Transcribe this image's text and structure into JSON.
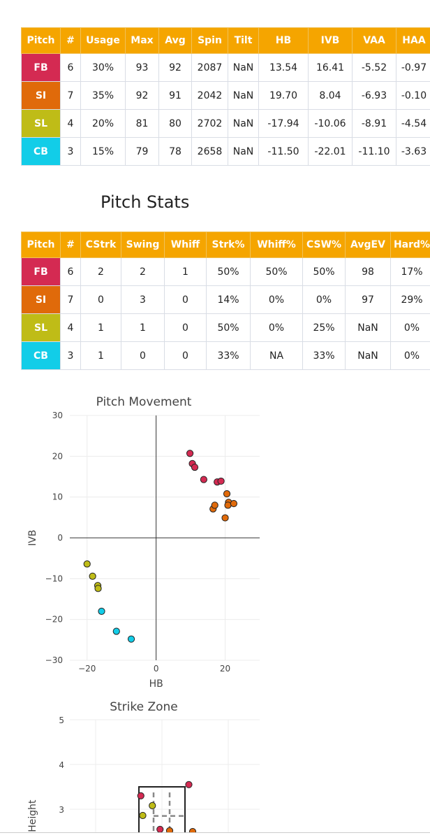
{
  "table1": {
    "headers": [
      "Pitch",
      "#",
      "Usage",
      "Max",
      "Avg",
      "Spin",
      "Tilt",
      "HB",
      "IVB",
      "VAA",
      "HAA"
    ],
    "rows": [
      [
        "FB",
        "6",
        "30%",
        "93",
        "92",
        "2087",
        "NaN",
        "13.54",
        "16.41",
        "-5.52",
        "-0.97"
      ],
      [
        "SI",
        "7",
        "35%",
        "92",
        "91",
        "2042",
        "NaN",
        "19.70",
        "8.04",
        "-6.93",
        "-0.10"
      ],
      [
        "SL",
        "4",
        "20%",
        "81",
        "80",
        "2702",
        "NaN",
        "-17.94",
        "-10.06",
        "-8.91",
        "-4.54"
      ],
      [
        "CB",
        "3",
        "15%",
        "79",
        "78",
        "2658",
        "NaN",
        "-11.50",
        "-22.01",
        "-11.10",
        "-3.63"
      ]
    ]
  },
  "stats_title": "Pitch Stats",
  "table2": {
    "headers": [
      "Pitch",
      "#",
      "CStrk",
      "Swing",
      "Whiff",
      "Strk%",
      "Whiff%",
      "CSW%",
      "AvgEV",
      "Hard%"
    ],
    "rows": [
      [
        "FB",
        "6",
        "2",
        "2",
        "1",
        "50%",
        "50%",
        "50%",
        "98",
        "17%"
      ],
      [
        "SI",
        "7",
        "0",
        "3",
        "0",
        "14%",
        "0%",
        "0%",
        "97",
        "29%"
      ],
      [
        "SL",
        "4",
        "1",
        "1",
        "0",
        "50%",
        "0%",
        "25%",
        "NaN",
        "0%"
      ],
      [
        "CB",
        "3",
        "1",
        "0",
        "0",
        "33%",
        "NA",
        "33%",
        "NaN",
        "0%"
      ]
    ]
  },
  "pitch_colors": {
    "FB": "#d42a52",
    "SI": "#e06a0a",
    "SL": "#bfbc17",
    "CB": "#12cde8"
  },
  "chart_data": [
    {
      "type": "scatter",
      "title": "Pitch Movement",
      "xlabel": "HB",
      "ylabel": "IVB",
      "xlim": [
        -25,
        30
      ],
      "ylim": [
        -30,
        30
      ],
      "xticks": [
        -20,
        0,
        20
      ],
      "yticks": [
        30,
        20,
        10,
        0,
        -10,
        -20,
        -30
      ],
      "grid": true,
      "series": [
        {
          "pitch": "FB",
          "points": [
            [
              9.8,
              20.7
            ],
            [
              10.5,
              18.2
            ],
            [
              11.2,
              17.3
            ],
            [
              13.8,
              14.3
            ],
            [
              17.7,
              13.7
            ],
            [
              18.8,
              13.9
            ]
          ]
        },
        {
          "pitch": "SI",
          "points": [
            [
              16.5,
              7.1
            ],
            [
              17.0,
              8.0
            ],
            [
              20.5,
              10.8
            ],
            [
              21.0,
              8.7
            ],
            [
              20.8,
              8.0
            ],
            [
              22.5,
              8.4
            ],
            [
              20.0,
              4.9
            ]
          ]
        },
        {
          "pitch": "SL",
          "points": [
            [
              -20.0,
              -6.4
            ],
            [
              -18.4,
              -9.4
            ],
            [
              -16.9,
              -11.7
            ],
            [
              -16.8,
              -12.4
            ]
          ]
        },
        {
          "pitch": "CB",
          "points": [
            [
              -15.8,
              -18.0
            ],
            [
              -11.5,
              -22.9
            ],
            [
              -7.2,
              -24.8
            ]
          ]
        }
      ]
    },
    {
      "type": "scatter",
      "title": "Strike Zone",
      "ylabel": "Height",
      "ylim": [
        1.5,
        5
      ],
      "yticks": [
        5,
        4,
        3
      ],
      "grid": true,
      "series": [
        {
          "pitch": "FB",
          "points": [
            [
              -0.55,
              3.3
            ],
            [
              0.7,
              3.55
            ],
            [
              -0.05,
              2.55
            ]
          ]
        },
        {
          "pitch": "SL",
          "points": [
            [
              -0.5,
              2.86
            ],
            [
              -0.25,
              3.08
            ]
          ]
        },
        {
          "pitch": "SI",
          "points": [
            [
              0.2,
              2.52
            ],
            [
              0.8,
              2.5
            ]
          ]
        }
      ]
    }
  ]
}
